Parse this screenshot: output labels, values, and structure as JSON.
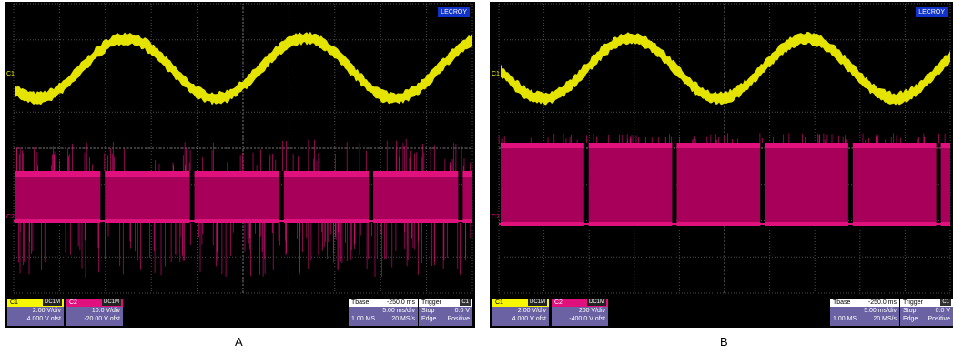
{
  "screenshots": [
    {
      "caption": "A",
      "status_tag": "LECROY",
      "ch1_marker": "C1",
      "ch2_marker": "C2",
      "ch1": {
        "label": "C1",
        "coupling": "DC1M",
        "vdiv": "2.00 V/div",
        "offset": "4.000 V ofst"
      },
      "ch2": {
        "label": "C2",
        "coupling": "DC1M",
        "vdiv": "10.0 V/div",
        "offset": "-20.00 V ofst"
      },
      "timebase": {
        "label": "Tbase",
        "value": "-250.0 ms",
        "rate": "5.00 ms/div",
        "samples": "1.00 MS",
        "sample_rate": "20 MS/s"
      },
      "trigger": {
        "label": "Trigger",
        "channel": "C1",
        "mode": "Stop",
        "level": "0.0 V",
        "type": "Edge",
        "slope": "Positive"
      },
      "colors": {
        "ch1": "#f0f000",
        "ch2": "#e0107d",
        "grid": "#4a4a4a"
      }
    },
    {
      "caption": "B",
      "status_tag": "LECROY",
      "ch1_marker": "C1",
      "ch2_marker": "C2",
      "ch1": {
        "label": "C1",
        "coupling": "DC1M",
        "vdiv": "2.00 V/div",
        "offset": "4.000 V ofst"
      },
      "ch2": {
        "label": "C2",
        "coupling": "DC1M",
        "vdiv": "200 V/div",
        "offset": "-400.0 V ofst"
      },
      "timebase": {
        "label": "Tbase",
        "value": "-250.0 ms",
        "rate": "5.00 ms/div",
        "samples": "1.00 MS",
        "sample_rate": "20 MS/s"
      },
      "trigger": {
        "label": "Trigger",
        "channel": "C1",
        "mode": "Stop",
        "level": "0.0 V",
        "type": "Edge",
        "slope": "Positive"
      },
      "colors": {
        "ch1": "#f0f000",
        "ch2": "#e0107d",
        "grid": "#4a4a4a"
      }
    }
  ]
}
